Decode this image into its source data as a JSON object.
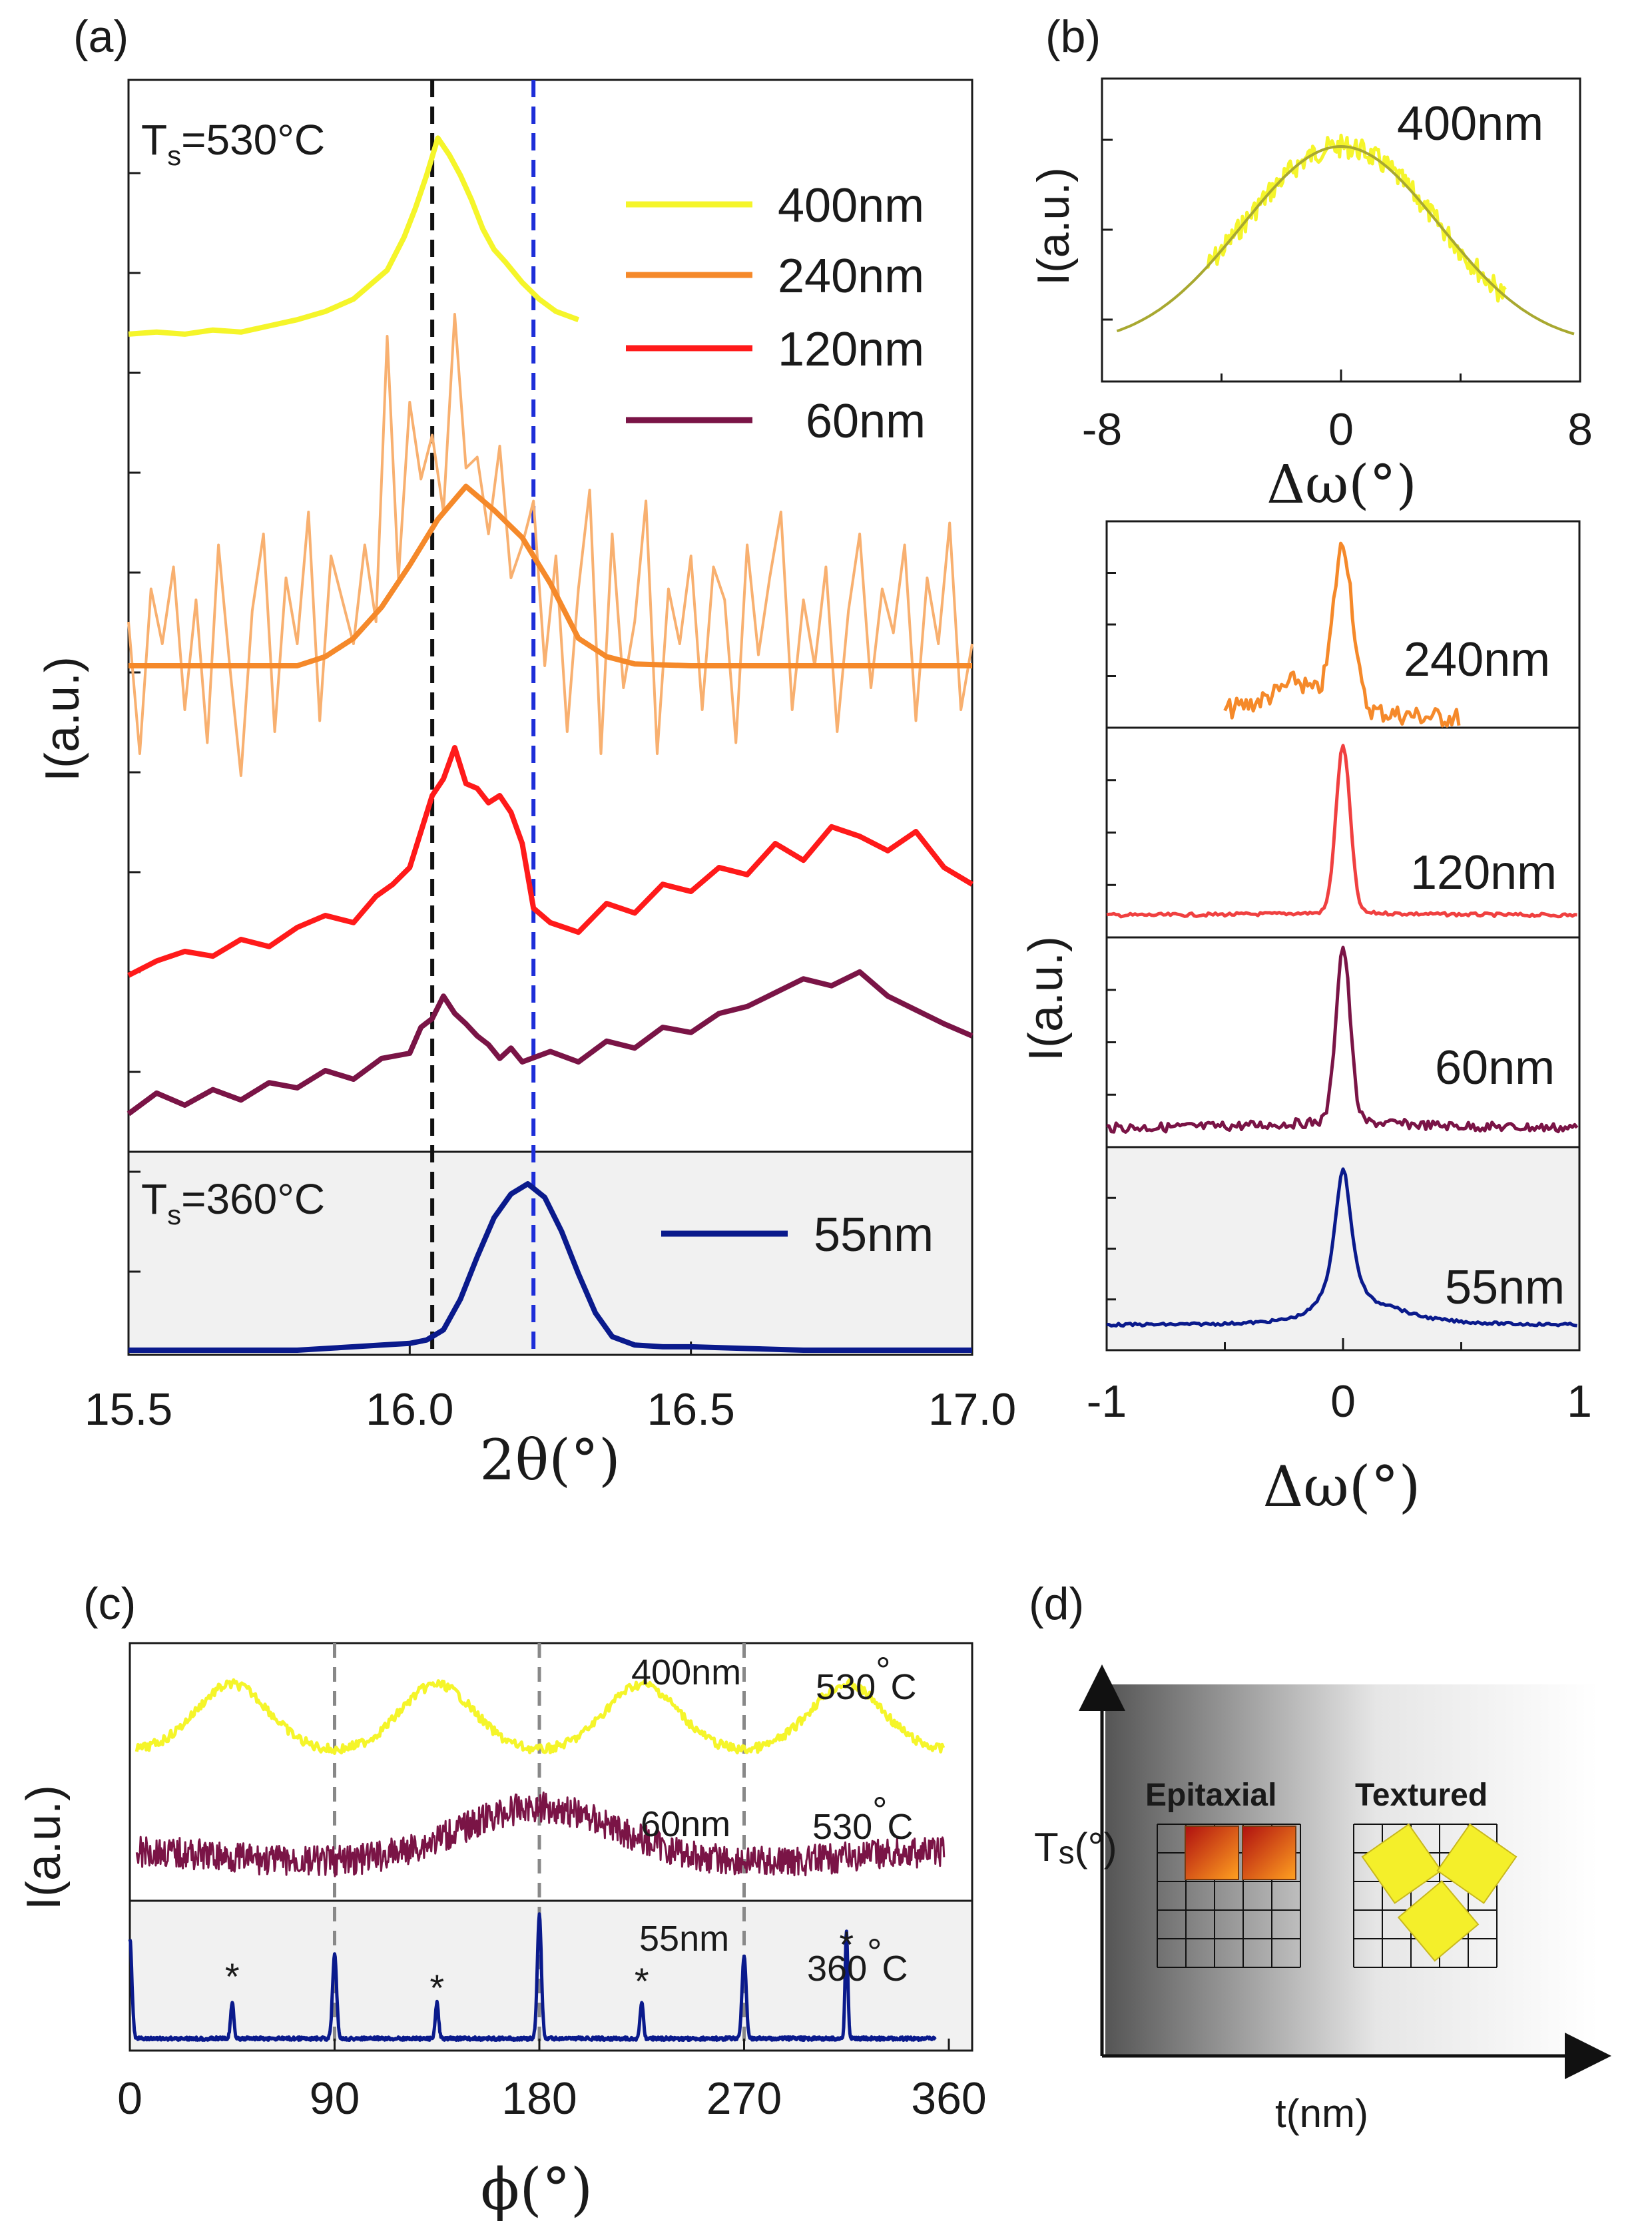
{
  "figure_labels": {
    "a": "(a)",
    "b": "(b)",
    "c": "(c)",
    "d": "(d)"
  },
  "colors": {
    "yellow": "#f5f52a",
    "orange": "#f5892a",
    "orange_light": "#f8b070",
    "red": "#ff1a1a",
    "maroon": "#7a1446",
    "blue": "#0a1a8c",
    "fit": "#a8a830",
    "black_dash": "#111111",
    "blue_dash": "#1d2ed8",
    "grey_dash": "#888888",
    "shade": "#f1f1f1"
  },
  "chart_data": [
    {
      "id": "a",
      "type": "line",
      "xlabel": "2θ(°)",
      "ylabel": "I(a.u.)",
      "xlim": [
        15.5,
        17.0
      ],
      "xticks": [
        15.5,
        16.0,
        16.5,
        17.0
      ],
      "xtick_labels": [
        "15.5",
        "16.0",
        "16.5",
        "17.0"
      ],
      "yticks": 12,
      "vlines": [
        16.04,
        16.22
      ],
      "ts_top": "T",
      "ts_top_sub": "s",
      "ts_top_rest": "=530°C",
      "ts_bottom": "T",
      "ts_bottom_sub": "s",
      "ts_bottom_rest": "=360°C",
      "legend": [
        "400nm",
        "240nm",
        "120nm",
        "60nm",
        "55nm"
      ],
      "series": [
        {
          "name": "400nm",
          "x": [
            15.5,
            15.55,
            15.6,
            15.65,
            15.7,
            15.75,
            15.8,
            15.85,
            15.9,
            15.93,
            15.96,
            15.99,
            16.01,
            16.03,
            16.05,
            16.07,
            16.09,
            16.11,
            16.13,
            16.15,
            16.17,
            16.2,
            16.23,
            16.26,
            16.3
          ],
          "values": [
            0.01,
            0.02,
            0.01,
            0.03,
            0.02,
            0.05,
            0.08,
            0.12,
            0.18,
            0.25,
            0.32,
            0.48,
            0.62,
            0.78,
            0.96,
            0.88,
            0.78,
            0.66,
            0.52,
            0.42,
            0.36,
            0.26,
            0.18,
            0.12,
            0.08
          ]
        },
        {
          "name": "240nm-raw",
          "x": [
            15.5,
            15.52,
            15.54,
            15.56,
            15.58,
            15.6,
            15.62,
            15.64,
            15.66,
            15.68,
            15.7,
            15.72,
            15.74,
            15.76,
            15.78,
            15.8,
            15.82,
            15.84,
            15.86,
            15.88,
            15.9,
            15.92,
            15.94,
            15.96,
            15.98,
            16.0,
            16.02,
            16.04,
            16.06,
            16.08,
            16.1,
            16.12,
            16.14,
            16.16,
            16.18,
            16.2,
            16.22,
            16.24,
            16.26,
            16.28,
            16.3,
            16.32,
            16.34,
            16.36,
            16.38,
            16.4,
            16.42,
            16.44,
            16.46,
            16.48,
            16.5,
            16.52,
            16.54,
            16.56,
            16.58,
            16.6,
            16.62,
            16.64,
            16.66,
            16.68,
            16.7,
            16.72,
            16.74,
            16.76,
            16.78,
            16.8,
            16.82,
            16.84,
            16.86,
            16.88,
            16.9,
            16.92,
            16.94,
            16.96,
            16.98,
            17.0
          ],
          "values": [
            0.2,
            -0.4,
            0.35,
            0.1,
            0.45,
            -0.2,
            0.3,
            -0.35,
            0.55,
            0.0,
            -0.5,
            0.25,
            0.6,
            -0.3,
            0.4,
            0.1,
            0.7,
            -0.25,
            0.5,
            0.3,
            0.1,
            0.55,
            0.2,
            1.5,
            0.4,
            1.2,
            0.85,
            1.05,
            0.7,
            1.6,
            0.9,
            0.95,
            0.6,
            1.0,
            0.4,
            0.55,
            0.75,
            0.0,
            0.5,
            -0.3,
            0.35,
            0.8,
            -0.4,
            0.6,
            -0.1,
            0.2,
            0.75,
            -0.4,
            0.35,
            0.1,
            0.5,
            -0.2,
            0.45,
            0.3,
            -0.35,
            0.55,
            0.05,
            0.4,
            0.7,
            -0.2,
            0.3,
            0.0,
            0.45,
            -0.3,
            0.25,
            0.6,
            -0.1,
            0.35,
            0.15,
            0.55,
            -0.25,
            0.4,
            0.1,
            0.65,
            -0.2,
            0.1
          ]
        },
        {
          "name": "240nm",
          "x": [
            15.5,
            15.6,
            15.7,
            15.8,
            15.85,
            15.9,
            15.95,
            16.0,
            16.05,
            16.1,
            16.15,
            16.2,
            16.25,
            16.3,
            16.35,
            16.4,
            16.5,
            16.6,
            16.8,
            17.0
          ],
          "values": [
            0.0,
            0.0,
            0.0,
            0.0,
            0.05,
            0.15,
            0.32,
            0.55,
            0.8,
            0.98,
            0.85,
            0.7,
            0.45,
            0.15,
            0.05,
            0.01,
            0.0,
            0.0,
            0.0,
            0.0
          ]
        },
        {
          "name": "120nm",
          "x": [
            15.5,
            15.55,
            15.6,
            15.65,
            15.7,
            15.75,
            15.8,
            15.85,
            15.9,
            15.94,
            15.97,
            16.0,
            16.02,
            16.04,
            16.06,
            16.08,
            16.1,
            16.12,
            16.14,
            16.16,
            16.18,
            16.2,
            16.22,
            16.25,
            16.3,
            16.35,
            16.4,
            16.45,
            16.5,
            16.55,
            16.6,
            16.65,
            16.7,
            16.75,
            16.8,
            16.85,
            16.9,
            16.95,
            17.0
          ],
          "values": [
            0.0,
            0.06,
            0.1,
            0.08,
            0.15,
            0.12,
            0.2,
            0.25,
            0.22,
            0.33,
            0.38,
            0.45,
            0.6,
            0.75,
            0.82,
            0.95,
            0.8,
            0.78,
            0.72,
            0.75,
            0.68,
            0.55,
            0.28,
            0.22,
            0.18,
            0.3,
            0.26,
            0.38,
            0.35,
            0.45,
            0.42,
            0.55,
            0.48,
            0.62,
            0.58,
            0.52,
            0.6,
            0.45,
            0.38
          ]
        },
        {
          "name": "60nm",
          "x": [
            15.5,
            15.55,
            15.6,
            15.65,
            15.7,
            15.75,
            15.8,
            15.85,
            15.9,
            15.95,
            16.0,
            16.02,
            16.04,
            16.06,
            16.08,
            16.1,
            16.12,
            16.14,
            16.16,
            16.18,
            16.2,
            16.25,
            16.3,
            16.35,
            16.4,
            16.45,
            16.5,
            16.55,
            16.6,
            16.65,
            16.7,
            16.75,
            16.8,
            16.85,
            16.9,
            16.95,
            17.0
          ],
          "values": [
            0.0,
            0.12,
            0.05,
            0.14,
            0.08,
            0.18,
            0.15,
            0.25,
            0.2,
            0.32,
            0.35,
            0.5,
            0.55,
            0.68,
            0.58,
            0.52,
            0.45,
            0.4,
            0.32,
            0.38,
            0.3,
            0.36,
            0.3,
            0.42,
            0.38,
            0.5,
            0.47,
            0.58,
            0.62,
            0.7,
            0.78,
            0.74,
            0.82,
            0.68,
            0.6,
            0.52,
            0.45
          ]
        },
        {
          "name": "55nm",
          "x": [
            15.5,
            15.6,
            15.7,
            15.8,
            15.9,
            15.95,
            16.0,
            16.03,
            16.06,
            16.09,
            16.12,
            16.15,
            16.18,
            16.21,
            16.24,
            16.27,
            16.3,
            16.33,
            16.36,
            16.4,
            16.45,
            16.5,
            16.6,
            16.7,
            16.8,
            16.9,
            17.0
          ],
          "values": [
            0.0,
            0.0,
            0.0,
            0.0,
            0.02,
            0.03,
            0.04,
            0.06,
            0.12,
            0.3,
            0.55,
            0.78,
            0.92,
            0.98,
            0.9,
            0.7,
            0.45,
            0.22,
            0.08,
            0.03,
            0.02,
            0.02,
            0.01,
            0.0,
            0.0,
            0.0,
            0.0
          ]
        }
      ]
    },
    {
      "id": "b-top",
      "type": "line",
      "xlabel": "Δω(°)",
      "ylabel": "I(a.u.)",
      "xlim": [
        -8,
        8
      ],
      "xticks": [
        -8,
        0,
        8
      ],
      "xtick_labels": [
        "-8",
        "0",
        "8"
      ],
      "label": "400nm",
      "series": [
        {
          "name": "400nm-data",
          "x_range": [
            -4.5,
            5.5
          ],
          "center": 0,
          "sigma": 3.3,
          "peak": 1.0
        },
        {
          "name": "400nm-fit",
          "x_range": [
            -7.5,
            7.8
          ],
          "center": 0,
          "sigma": 3.3,
          "peak": 1.0
        }
      ]
    },
    {
      "id": "b-bottom",
      "type": "line",
      "xlabel": "Δω(°)",
      "ylabel": "I(a.u.)",
      "xlim": [
        -1,
        1
      ],
      "xticks": [
        -1,
        0,
        1
      ],
      "xtick_labels": [
        "-1",
        "0",
        "1"
      ],
      "panels": [
        "240nm",
        "120nm",
        "60nm",
        "55nm"
      ],
      "series": [
        {
          "name": "240nm",
          "x_range": [
            -0.5,
            0.5
          ],
          "center": 0.0,
          "width": 0.03,
          "base": 0.1
        },
        {
          "name": "120nm",
          "x_range": [
            -1,
            1
          ],
          "center": 0.0,
          "width": 0.03,
          "base": 0.05
        },
        {
          "name": "60nm",
          "x_range": [
            -1,
            1
          ],
          "center": 0.0,
          "width": 0.03,
          "base": 0.12
        },
        {
          "name": "55nm",
          "x_range": [
            -1,
            1
          ],
          "center": 0.0,
          "width": 0.04,
          "base": 0.1
        }
      ]
    },
    {
      "id": "c",
      "type": "line",
      "xlabel": "ϕ(°)",
      "ylabel": "I(a.u.)",
      "xlim": [
        0,
        360
      ],
      "xticks": [
        0,
        90,
        180,
        270,
        360
      ],
      "xtick_labels": [
        "0",
        "90",
        "180",
        "270",
        "360"
      ],
      "vlines": [
        90,
        180,
        270
      ],
      "labels": {
        "t400": "400nm",
        "t60": "60nm",
        "t55": "55nm",
        "temp530a": "530",
        "temp530b": "530",
        "temp360": "360",
        "deg": "°",
        "C": "C",
        "star": "*"
      },
      "series": [
        {
          "name": "400nm",
          "peaks": [
            45,
            135,
            225,
            315
          ]
        },
        {
          "name": "60nm",
          "peaks": [
            180
          ]
        },
        {
          "name": "55nm",
          "main_peaks": [
            0,
            90,
            180,
            270
          ],
          "star_peaks": [
            45,
            135,
            225,
            315
          ]
        }
      ]
    }
  ],
  "diagram_d": {
    "epitaxial": "Epitaxial",
    "textured": "Textured",
    "ylabel": "T",
    "ylabel_sub": "s",
    "ylabel_rest": "(°)",
    "xlabel": "t(nm)"
  }
}
